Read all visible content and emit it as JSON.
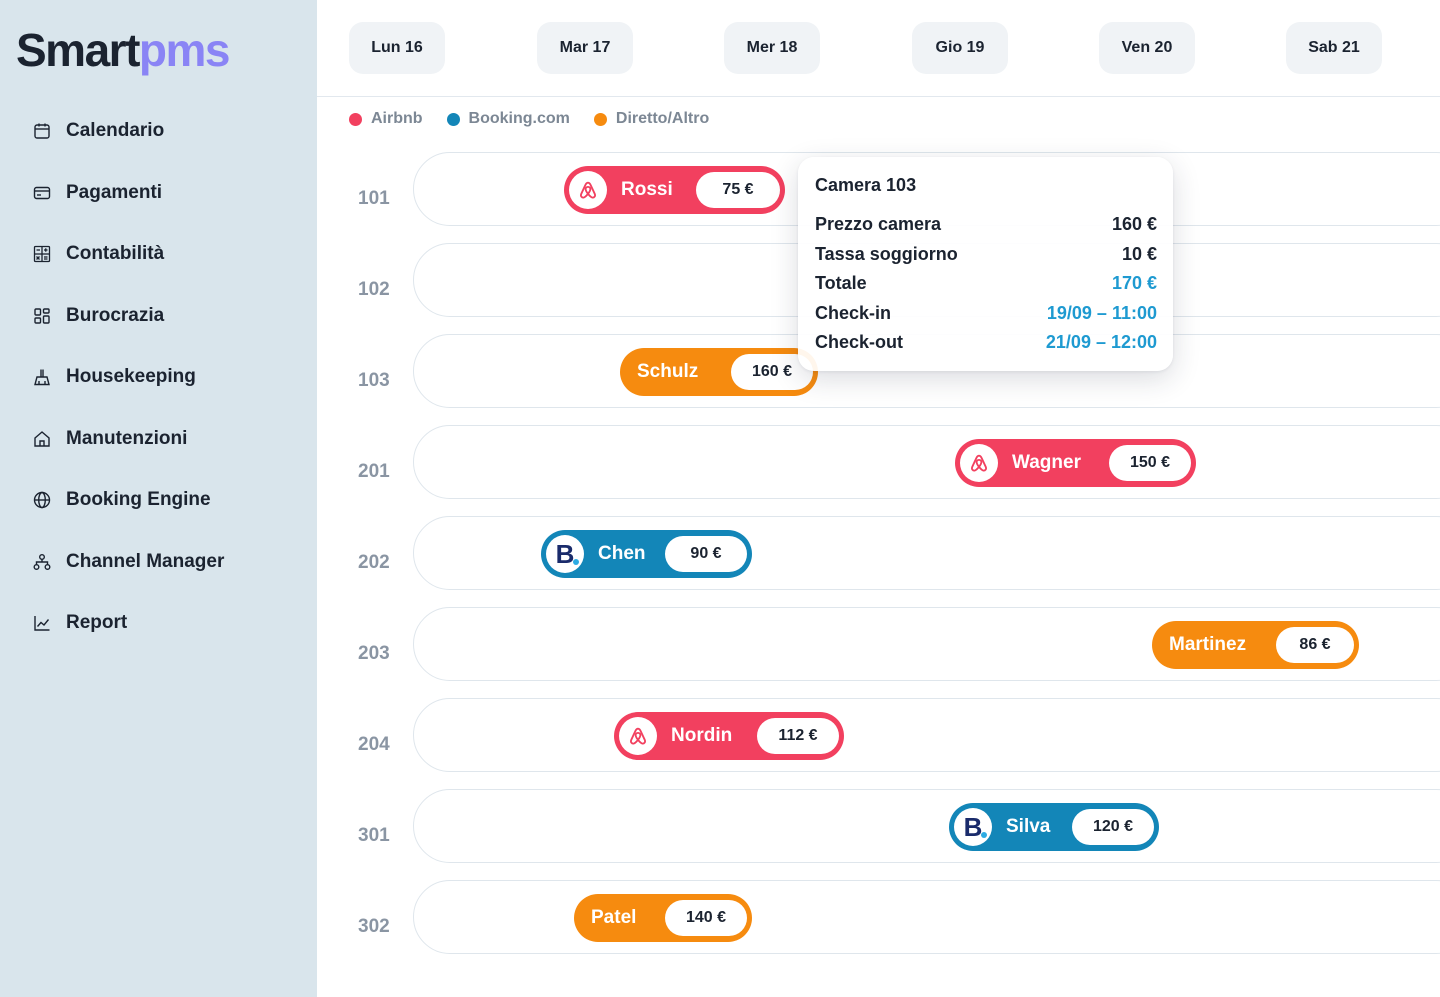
{
  "brand": {
    "part1": "Smart",
    "part2": "pms"
  },
  "sidebar": {
    "items": [
      {
        "label": "Calendario",
        "icon": "calendar-icon"
      },
      {
        "label": "Pagamenti",
        "icon": "credit-card-icon"
      },
      {
        "label": "Contabilità",
        "icon": "calculator-icon"
      },
      {
        "label": "Burocrazia",
        "icon": "grid-icon"
      },
      {
        "label": "Housekeeping",
        "icon": "cleaning-icon"
      },
      {
        "label": "Manutenzioni",
        "icon": "home-icon"
      },
      {
        "label": "Booking Engine",
        "icon": "globe-icon"
      },
      {
        "label": "Channel Manager",
        "icon": "network-icon"
      },
      {
        "label": "Report",
        "icon": "chart-icon"
      }
    ]
  },
  "days": [
    "Lun 16",
    "Mar 17",
    "Mer 18",
    "Gio 19",
    "Ven 20",
    "Sab 21"
  ],
  "legend": [
    {
      "label": "Airbnb",
      "color": "#f2405f"
    },
    {
      "label": "Booking.com",
      "color": "#1386b8"
    },
    {
      "label": "Diretto/Altro",
      "color": "#f68b0f"
    }
  ],
  "rooms": [
    "101",
    "102",
    "103",
    "201",
    "202",
    "203",
    "204",
    "301",
    "302"
  ],
  "bookings": [
    {
      "room": "101",
      "guest": "Rossi",
      "price": "75 €",
      "channel": "airbnb"
    },
    {
      "room": "103",
      "guest": "Schulz",
      "price": "160 €",
      "channel": "direct"
    },
    {
      "room": "201",
      "guest": "Wagner",
      "price": "150 €",
      "channel": "airbnb"
    },
    {
      "room": "202",
      "guest": "Chen",
      "price": "90 €",
      "channel": "booking"
    },
    {
      "room": "203",
      "guest": "Martinez",
      "price": "86 €",
      "channel": "direct"
    },
    {
      "room": "204",
      "guest": "Nordin",
      "price": "112 €",
      "channel": "airbnb"
    },
    {
      "room": "301",
      "guest": "Silva",
      "price": "120 €",
      "channel": "booking"
    },
    {
      "room": "302",
      "guest": "Patel",
      "price": "140 €",
      "channel": "direct"
    }
  ],
  "tooltip": {
    "title": "Camera 103",
    "rows": [
      {
        "label": "Prezzo camera",
        "value": "160 €"
      },
      {
        "label": "Tassa soggiorno",
        "value": "10 €"
      },
      {
        "label": "Totale",
        "value": "170 €"
      },
      {
        "label": "Check-in",
        "value": "19/09 – 11:00"
      },
      {
        "label": "Check-out",
        "value": "21/09 – 12:00"
      }
    ]
  },
  "colors": {
    "airbnb": "#f2405f",
    "booking": "#1386b8",
    "direct": "#f68b0f",
    "accent": "#1e9ad1",
    "sidebar": "#d9e5ec"
  }
}
